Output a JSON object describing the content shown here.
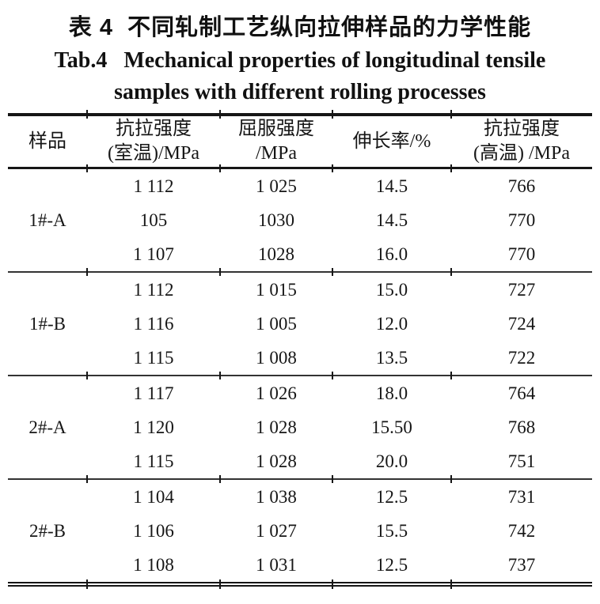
{
  "titles": {
    "zh": "表 4  不同轧制工艺纵向拉伸样品的力学性能",
    "en_line1": "Tab.4   Mechanical properties of longitudinal tensile",
    "en_line2": "samples with different rolling processes"
  },
  "table": {
    "headers": [
      {
        "line1": "样品",
        "line2": ""
      },
      {
        "line1": "抗拉强度",
        "line2": "(室温)/MPa"
      },
      {
        "line1": "屈服强度",
        "line2": "/MPa"
      },
      {
        "line1": "伸长率/%",
        "line2": ""
      },
      {
        "line1": "抗拉强度",
        "line2": "(高温) /MPa"
      }
    ],
    "groups": [
      {
        "sample": "1#-A",
        "rows": [
          [
            "1 112",
            "1 025",
            "14.5",
            "766"
          ],
          [
            "105",
            "1030",
            "14.5",
            "770"
          ],
          [
            "1 107",
            "1028",
            "16.0",
            "770"
          ]
        ]
      },
      {
        "sample": "1#-B",
        "rows": [
          [
            "1 112",
            "1 015",
            "15.0",
            "727"
          ],
          [
            "1 116",
            "1 005",
            "12.0",
            "724"
          ],
          [
            "1 115",
            "1 008",
            "13.5",
            "722"
          ]
        ]
      },
      {
        "sample": "2#-A",
        "rows": [
          [
            "1 117",
            "1 026",
            "18.0",
            "764"
          ],
          [
            "1 120",
            "1 028",
            "15.50",
            "768"
          ],
          [
            "1 115",
            "1 028",
            "20.0",
            "751"
          ]
        ]
      },
      {
        "sample": "2#-B",
        "rows": [
          [
            "1 104",
            "1 038",
            "12.5",
            "731"
          ],
          [
            "1 106",
            "1 027",
            "15.5",
            "742"
          ],
          [
            "1 108",
            "1 031",
            "12.5",
            "737"
          ]
        ]
      }
    ]
  },
  "colors": {
    "text": "#1a1a1a",
    "rule": "#161616",
    "background": "#ffffff"
  }
}
